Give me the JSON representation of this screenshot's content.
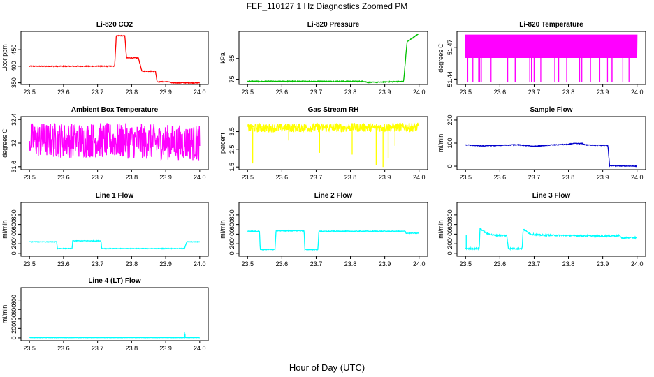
{
  "figure": {
    "title": "FEF_110127  1 Hz Diagnostics Zoomed PM",
    "xlabel": "Hour of Day (UTC)"
  },
  "chart_data": [
    {
      "type": "line",
      "title": "Li-820 CO2",
      "ylabel": "Licor ppm",
      "color": "#ff0000",
      "xlim": [
        23.475,
        24.025
      ],
      "ylim": [
        345,
        505
      ],
      "xticks": [
        "23.5",
        "23.6",
        "23.7",
        "23.8",
        "23.9",
        "24.0"
      ],
      "yticks": [
        350,
        400,
        450
      ],
      "segments": [
        [
          [
            23.5,
            400
          ],
          [
            23.75,
            400
          ],
          [
            23.755,
            492
          ],
          [
            23.78,
            492
          ],
          [
            23.785,
            425
          ],
          [
            23.82,
            425
          ],
          [
            23.83,
            385
          ],
          [
            23.87,
            385
          ],
          [
            23.875,
            353
          ],
          [
            23.91,
            353
          ],
          [
            23.915,
            350
          ],
          [
            24.0,
            350
          ]
        ]
      ],
      "noise": 1.2,
      "spikes": []
    },
    {
      "type": "line",
      "title": "Li-820 Pressure",
      "ylabel": "kPa",
      "color": "#00c000",
      "xlim": [
        23.475,
        24.025
      ],
      "ylim": [
        72.5,
        98
      ],
      "xticks": [
        "23.5",
        "23.6",
        "23.7",
        "23.8",
        "23.9",
        "24.0"
      ],
      "yticks": [
        75,
        85
      ],
      "segments": [
        [
          [
            23.5,
            74
          ],
          [
            23.84,
            74
          ],
          [
            23.85,
            73.5
          ],
          [
            23.86,
            73.5
          ],
          [
            23.955,
            74
          ],
          [
            23.965,
            93
          ],
          [
            24.0,
            97
          ]
        ]
      ],
      "noise": 0.2,
      "spikes": []
    },
    {
      "type": "line",
      "title": "Li-820 Temperature",
      "ylabel": "degrees C",
      "color": "#ff00ff",
      "xlim": [
        23.475,
        24.025
      ],
      "ylim": [
        51.435,
        51.485
      ],
      "xticks": [
        "23.5",
        "23.6",
        "23.7",
        "23.8",
        "23.9",
        "24.0"
      ],
      "yticks": [
        51.44,
        51.47
      ],
      "segments": [
        [
          [
            23.5,
            51.48
          ],
          [
            24.0,
            51.48
          ]
        ]
      ],
      "noise": 0,
      "alternate": [
        51.482,
        51.46
      ],
      "dropTo": 51.437,
      "dropCount": 26,
      "spikes": []
    },
    {
      "type": "line",
      "title": "Ambient Box Temperature",
      "ylabel": "degrees C",
      "color": "#ff00ff",
      "xlim": [
        23.475,
        24.025
      ],
      "ylim": [
        31.55,
        32.45
      ],
      "xticks": [
        "23.5",
        "23.6",
        "23.7",
        "23.8",
        "23.9",
        "24.0"
      ],
      "yticks": [
        31.6,
        32.0,
        32.4
      ],
      "segments": [
        [
          [
            23.5,
            32.05
          ],
          [
            23.7,
            32.05
          ],
          [
            24.0,
            32.0
          ]
        ]
      ],
      "noise": 0.3,
      "spikes": []
    },
    {
      "type": "line",
      "title": "Gas Stream RH",
      "ylabel": "percent",
      "color": "#ffff00",
      "xlim": [
        23.475,
        24.025
      ],
      "ylim": [
        1.35,
        4.35
      ],
      "xticks": [
        "23.5",
        "23.6",
        "23.7",
        "23.8",
        "23.9",
        "24.0"
      ],
      "yticks": [
        1.5,
        2.5,
        3.5
      ],
      "segments": [
        [
          [
            23.5,
            3.7
          ],
          [
            24.0,
            3.75
          ]
        ]
      ],
      "noise": 0.25,
      "spikes": [
        [
          23.515,
          1.7
        ],
        [
          23.71,
          2.3
        ],
        [
          23.805,
          2.2
        ],
        [
          23.875,
          1.6
        ],
        [
          23.895,
          1.5
        ],
        [
          23.91,
          2.0
        ],
        [
          23.62,
          3.0
        ],
        [
          23.93,
          2.7
        ]
      ]
    },
    {
      "type": "line",
      "title": "Sample Flow",
      "ylabel": "ml/min",
      "color": "#0000cc",
      "xlim": [
        23.475,
        24.025
      ],
      "ylim": [
        -15,
        215
      ],
      "xticks": [
        "23.5",
        "23.6",
        "23.7",
        "23.8",
        "23.9",
        "24.0"
      ],
      "yticks": [
        0,
        100,
        200
      ],
      "segments": [
        [
          [
            23.5,
            92
          ],
          [
            23.55,
            88
          ],
          [
            23.6,
            90
          ],
          [
            23.65,
            93
          ],
          [
            23.7,
            86
          ],
          [
            23.75,
            92
          ],
          [
            23.8,
            94
          ],
          [
            23.81,
            98
          ],
          [
            23.84,
            98
          ],
          [
            23.85,
            92
          ],
          [
            23.915,
            90
          ],
          [
            23.92,
            2
          ],
          [
            24.0,
            0
          ]
        ]
      ],
      "noise": 1.5,
      "spikes": []
    },
    {
      "type": "line",
      "title": "Line 1 Flow",
      "ylabel": "ml/min",
      "color": "#00ffff",
      "xlim": [
        23.475,
        24.025
      ],
      "ylim": [
        -60,
        1060
      ],
      "xticks": [
        "23.5",
        "23.6",
        "23.7",
        "23.8",
        "23.9",
        "24.0"
      ],
      "yticks": [
        0,
        200,
        400,
        600,
        800
      ],
      "segments": [
        [
          [
            23.5,
            240
          ],
          [
            23.58,
            240
          ],
          [
            23.582,
            100
          ],
          [
            23.625,
            100
          ],
          [
            23.627,
            260
          ],
          [
            23.71,
            260
          ],
          [
            23.712,
            100
          ],
          [
            23.955,
            100
          ],
          [
            23.962,
            240
          ],
          [
            24.0,
            240
          ]
        ]
      ],
      "noise": 6,
      "spikes": []
    },
    {
      "type": "line",
      "title": "Line 2 Flow",
      "ylabel": "ml/min",
      "color": "#00ffff",
      "xlim": [
        23.475,
        24.025
      ],
      "ylim": [
        -60,
        1060
      ],
      "xticks": [
        "23.5",
        "23.6",
        "23.7",
        "23.8",
        "23.9",
        "24.0"
      ],
      "yticks": [
        0,
        200,
        400,
        600,
        800
      ],
      "segments": [
        [
          [
            23.5,
            460
          ],
          [
            23.535,
            460
          ],
          [
            23.537,
            80
          ],
          [
            23.58,
            80
          ],
          [
            23.583,
            470
          ],
          [
            23.665,
            470
          ],
          [
            23.667,
            80
          ],
          [
            23.705,
            80
          ],
          [
            23.708,
            460
          ],
          [
            23.96,
            460
          ],
          [
            23.962,
            420
          ],
          [
            24.0,
            420
          ]
        ]
      ],
      "noise": 8,
      "spikes": []
    },
    {
      "type": "line",
      "title": "Line 3 Flow",
      "ylabel": "ml/min",
      "color": "#00ffff",
      "xlim": [
        23.475,
        24.025
      ],
      "ylim": [
        -60,
        1060
      ],
      "xticks": [
        "23.5",
        "23.6",
        "23.7",
        "23.8",
        "23.9",
        "24.0"
      ],
      "yticks": [
        0,
        200,
        400,
        600,
        800
      ],
      "segments": [
        [
          [
            23.5,
            100
          ],
          [
            23.54,
            100
          ],
          [
            23.542,
            520
          ],
          [
            23.56,
            420
          ],
          [
            23.58,
            380
          ],
          [
            23.62,
            370
          ],
          [
            23.625,
            100
          ],
          [
            23.665,
            100
          ],
          [
            23.668,
            500
          ],
          [
            23.69,
            400
          ],
          [
            23.72,
            380
          ],
          [
            23.9,
            360
          ],
          [
            23.95,
            370
          ],
          [
            23.955,
            320
          ],
          [
            24.0,
            330
          ]
        ]
      ],
      "noise": 14,
      "spikes": [
        [
          23.502,
          380
        ]
      ]
    },
    {
      "type": "line",
      "title": "Line 4 (LT) Flow",
      "ylabel": "ml/min",
      "color": "#00ffff",
      "xlim": [
        23.475,
        24.025
      ],
      "ylim": [
        -60,
        1060
      ],
      "xticks": [
        "23.5",
        "23.6",
        "23.7",
        "23.8",
        "23.9",
        "24.0"
      ],
      "yticks": [
        0,
        200,
        400,
        600,
        800
      ],
      "segments": [
        [
          [
            23.5,
            5
          ],
          [
            24.0,
            5
          ]
        ]
      ],
      "noise": 3,
      "spikes": [
        [
          23.955,
          130
        ],
        [
          23.957,
          90
        ]
      ]
    }
  ]
}
